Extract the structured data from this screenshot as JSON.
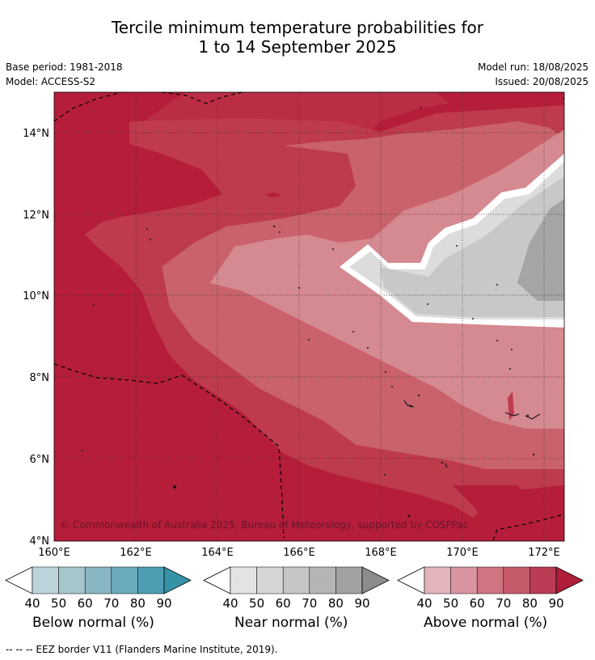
{
  "title_line1": "Tercile minimum temperature probabilities for",
  "title_line2": "1 to 14 September 2025",
  "base_period": "Base period: 1981-2018",
  "model": "Model: ACCESS-S2",
  "model_run": "Model run: 18/08/2025",
  "issued": "Issued: 20/08/2025",
  "copyright": "© Commonwealth of Australia 2025, Bureau of Meteorology, supported by COSPPac",
  "lat_labels": [
    "14°N",
    "12°N",
    "10°N",
    "8°N",
    "6°N",
    "4°N"
  ],
  "lon_labels": [
    "160°E",
    "162°E",
    "164°E",
    "166°E",
    "168°E",
    "170°E",
    "172°E"
  ],
  "colorbars": [
    {
      "label": "Below normal (%)",
      "ticks": [
        "40",
        "50",
        "60",
        "70",
        "80",
        "90"
      ],
      "colors": [
        "#bdd3da",
        "#a5c6cc",
        "#88b7c3",
        "#6aaabb",
        "#4d9eb3",
        "#3593a8"
      ]
    },
    {
      "label": "Near normal (%)",
      "ticks": [
        "40",
        "50",
        "60",
        "70",
        "80",
        "90"
      ],
      "colors": [
        "#e3e3e3",
        "#d5d5d5",
        "#c5c5c5",
        "#b4b4b4",
        "#a2a2a2",
        "#8c8c8c"
      ]
    },
    {
      "label": "Above normal (%)",
      "ticks": [
        "40",
        "50",
        "60",
        "70",
        "80",
        "90"
      ],
      "colors": [
        "#e3b5bb",
        "#d9959f",
        "#cf7581",
        "#c55b6b",
        "#b93b54",
        "#b01e3c"
      ]
    }
  ],
  "footnote": "--  --  -- EEZ border V11 (Flanders Marine Institute, 2019).",
  "colors": {
    "above_90": "#b51d3b",
    "above_80": "#be3a4d",
    "above_70": "#c9626c",
    "above_60": "#d58990",
    "near_50": "#dcdcdc",
    "near_60": "#c8c8c8",
    "near_70": "#a5a5a5"
  }
}
